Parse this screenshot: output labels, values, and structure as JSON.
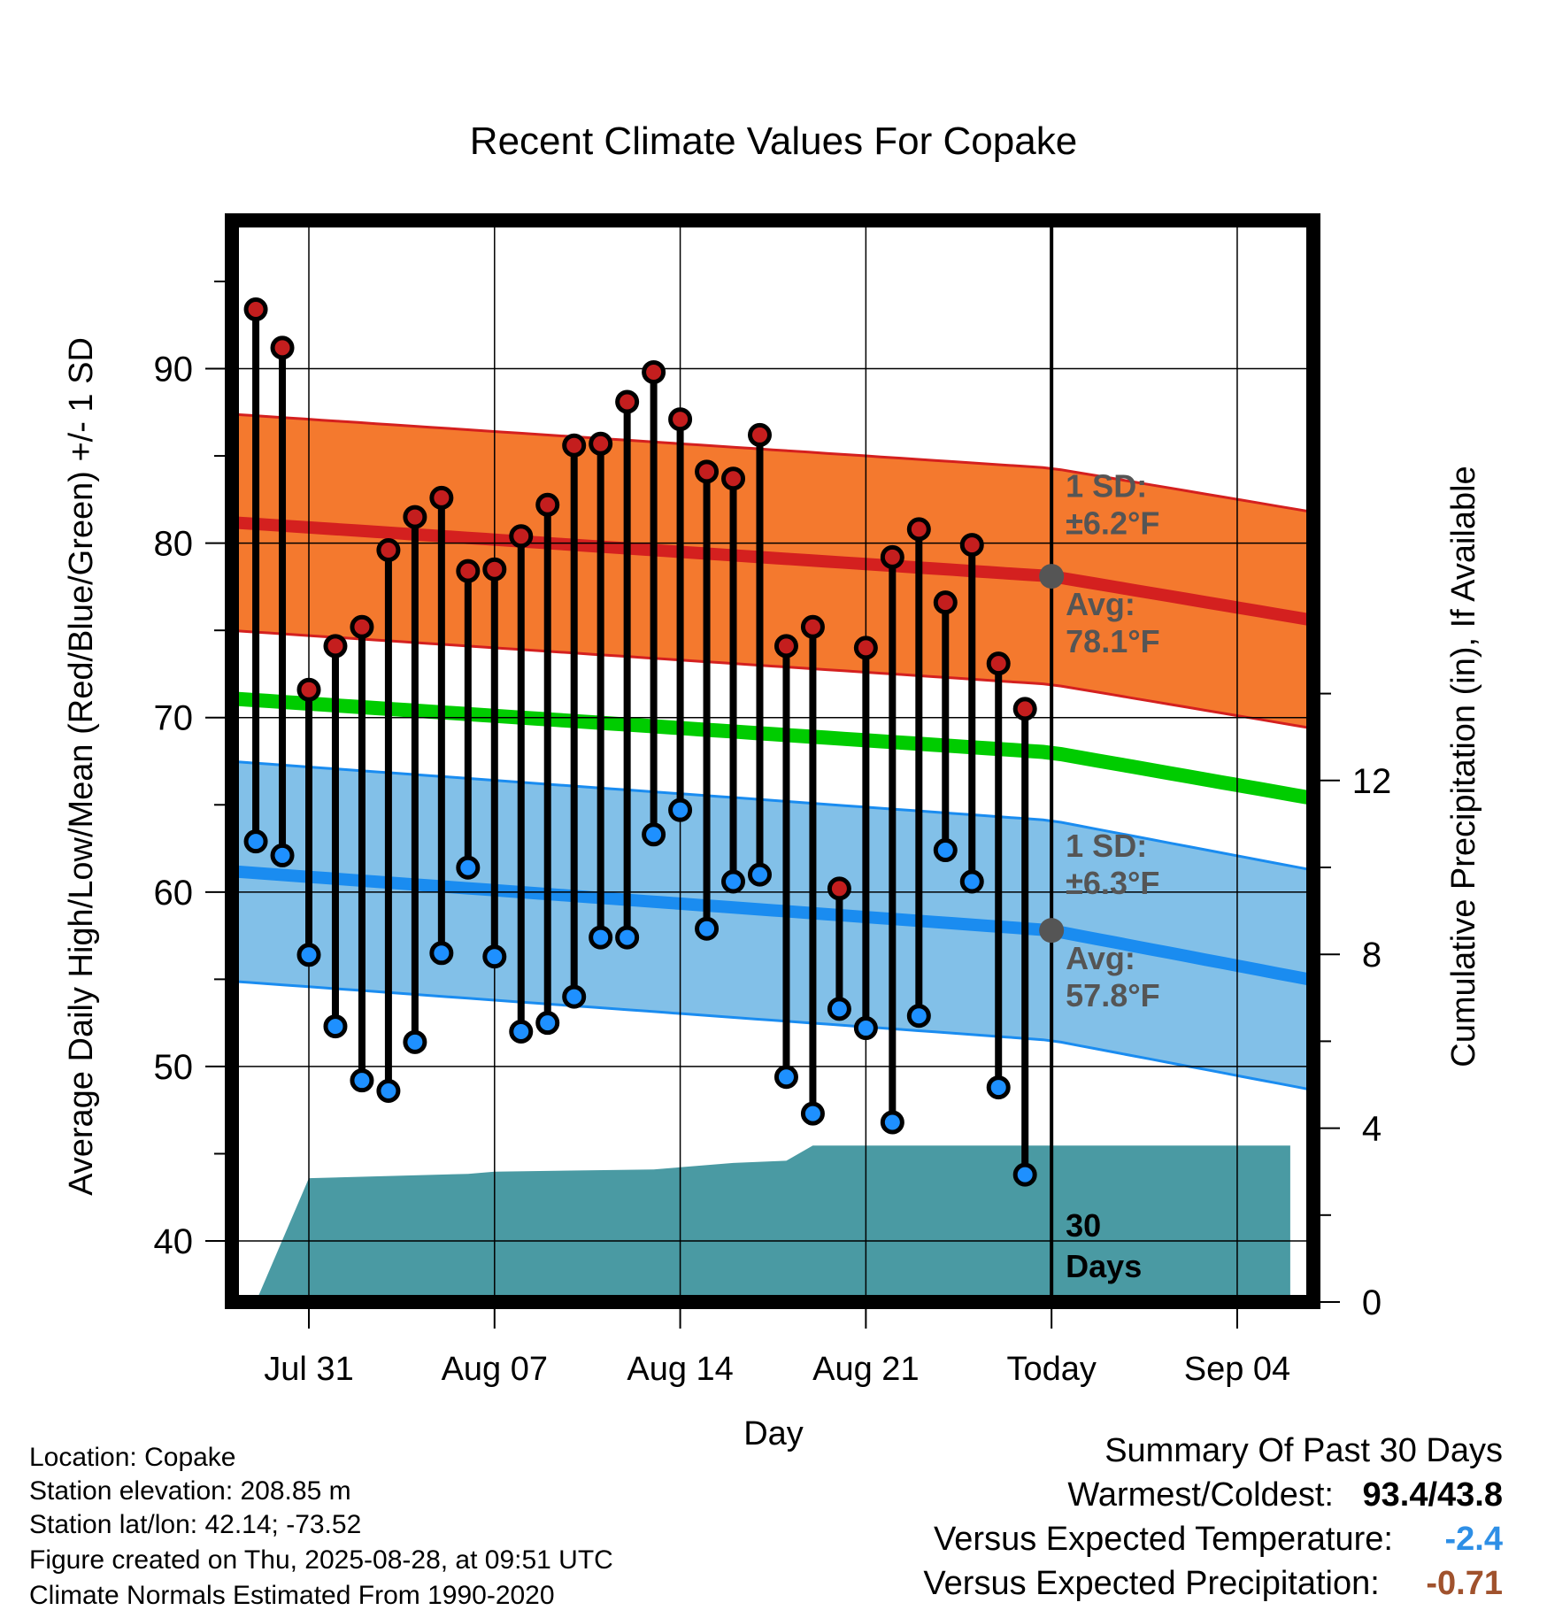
{
  "chart_data": {
    "type": "line",
    "title": "Recent Climate Values For Copake",
    "xlabel": "Day",
    "ylabel": "Average Daily High/Low/Mean (Red/Blue/Green) +/- 1 SD",
    "y2label": "Cumulative Precipitation (in), If Available",
    "ylim": [
      36.5,
      98.5
    ],
    "y2lim": [
      0,
      16
    ],
    "xlim": [
      -8.5,
      32.5
    ],
    "x_ticks": [
      {
        "day": 0,
        "label": "Jul 31"
      },
      {
        "day": 7,
        "label": "Aug 07"
      },
      {
        "day": 14,
        "label": "Aug 14"
      },
      {
        "day": 21,
        "label": "Aug 21"
      },
      {
        "day": 28,
        "label": "Today"
      },
      {
        "day": 35,
        "label": "Sep 04"
      }
    ],
    "y_ticks": [
      40,
      50,
      60,
      70,
      80,
      90
    ],
    "y2_ticks": [
      0,
      4,
      8,
      12
    ],
    "grid": true,
    "x_start_date": "Jul 29",
    "daily_highs": [
      93.4,
      91.2,
      71.6,
      74.1,
      75.2,
      79.6,
      81.5,
      82.6,
      78.4,
      78.5,
      80.4,
      82.2,
      85.6,
      85.7,
      88.1,
      89.8,
      87.1,
      84.1,
      83.7,
      86.2,
      74.1,
      75.2,
      60.2,
      74.0,
      79.2,
      80.8,
      76.6,
      79.9,
      73.1,
      70.5
    ],
    "daily_lows": [
      62.9,
      62.1,
      56.4,
      52.3,
      49.2,
      48.6,
      51.4,
      56.5,
      61.4,
      56.3,
      52.0,
      52.5,
      54.0,
      57.4,
      57.4,
      63.3,
      64.7,
      57.9,
      60.6,
      61.0,
      49.4,
      47.3,
      53.3,
      52.2,
      46.8,
      52.9,
      62.4,
      60.6,
      48.8,
      43.8
    ],
    "normal_high": {
      "days": [
        -3,
        28,
        37
      ],
      "values": [
        81.2,
        78.1,
        75.8
      ]
    },
    "normal_high_sd": 6.2,
    "normal_low": {
      "days": [
        -3,
        28,
        37
      ],
      "values": [
        61.2,
        57.8,
        55.2
      ]
    },
    "normal_low_sd": 6.3,
    "normal_mean": {
      "days": [
        -3,
        28,
        37
      ],
      "values": [
        71.1,
        68.0,
        65.6
      ]
    },
    "cumulative_precip": {
      "days": [
        -2,
        0,
        6,
        7,
        13,
        14,
        16,
        18,
        19,
        25,
        28,
        37
      ],
      "values": [
        0,
        2.85,
        2.95,
        3.0,
        3.05,
        3.1,
        3.2,
        3.25,
        3.6,
        3.6,
        3.6,
        3.6
      ]
    },
    "today_day": 28,
    "today_label_lines": [
      "30",
      "Days"
    ],
    "annotations": {
      "high_sd_label": "1 SD:",
      "high_sd_value": "±6.2°F",
      "high_avg_label": "Avg:",
      "high_avg_value": "78.1°F",
      "low_sd_label": "1 SD:",
      "low_sd_value": "±6.3°F",
      "low_avg_label": "Avg:",
      "low_avg_value": "57.8°F"
    },
    "colors": {
      "high_band": "#f4792e",
      "high_line": "#d4201f",
      "high_dot": "#c41e1e",
      "low_band": "#82c0e8",
      "low_line": "#1a8cf0",
      "low_dot": "#1e90ff",
      "mean_line": "#00cc00",
      "precip": "#4a9aa3",
      "annotation": "#555555"
    }
  },
  "footer": {
    "location": "Location: Copake",
    "elevation": "Station elevation: 208.85 m",
    "latlon": "Station lat/lon: 42.14; -73.52",
    "created": "Figure created on Thu, 2025-08-28, at 09:51 UTC",
    "normals": "Climate Normals Estimated From 1990-2020"
  },
  "summary": {
    "title": "Summary Of Past 30 Days",
    "warm_cold_label": "Warmest/Coldest:",
    "warm_cold_value": "93.4/43.8",
    "temp_label": "Versus Expected Temperature:",
    "temp_value": "-2.4",
    "temp_color": "#2e8fe6",
    "precip_label": "Versus Expected Precipitation:",
    "precip_value": "-0.71",
    "precip_color": "#a0522d"
  }
}
